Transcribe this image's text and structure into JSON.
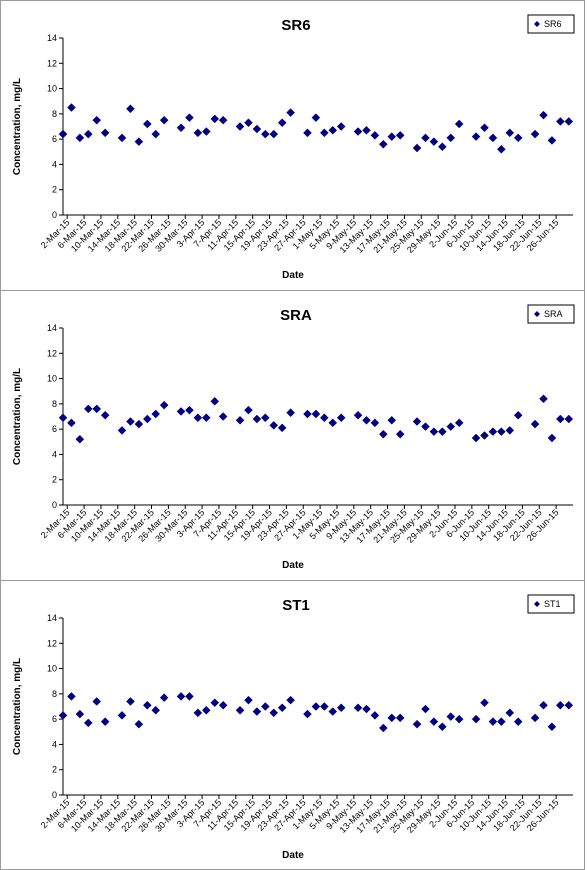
{
  "chart_data": [
    {
      "type": "scatter",
      "title": "SR6",
      "xlabel": "Date",
      "ylabel": "Concentration, mg/L",
      "ylim": [
        0,
        14
      ],
      "yticks": [
        0,
        2,
        4,
        6,
        8,
        10,
        12,
        14
      ],
      "xlim": [
        "2015-03-01",
        "2015-06-30"
      ],
      "xticks": [
        "2-Mar-15",
        "6-Mar-15",
        "10-Mar-15",
        "14-Mar-15",
        "18-Mar-15",
        "22-Mar-15",
        "26-Mar-15",
        "30-Mar-15",
        "3-Apr-15",
        "7-Apr-15",
        "11-Apr-15",
        "15-Apr-15",
        "19-Apr-15",
        "23-Apr-15",
        "27-Apr-15",
        "1-May-15",
        "5-May-15",
        "9-May-15",
        "13-May-15",
        "17-May-15",
        "21-May-15",
        "25-May-15",
        "29-May-15",
        "2-Jun-15",
        "6-Jun-15",
        "10-Jun-15",
        "14-Jun-15",
        "18-Jun-15",
        "22-Jun-15",
        "26-Jun-15"
      ],
      "legend": "top-right",
      "grid": false,
      "color": "#000080",
      "series": [
        {
          "name": "SR6",
          "x": [
            "2015-03-01",
            "2015-03-03",
            "2015-03-05",
            "2015-03-07",
            "2015-03-09",
            "2015-03-11",
            "2015-03-15",
            "2015-03-17",
            "2015-03-19",
            "2015-03-21",
            "2015-03-23",
            "2015-03-25",
            "2015-03-29",
            "2015-03-31",
            "2015-04-02",
            "2015-04-04",
            "2015-04-06",
            "2015-04-08",
            "2015-04-12",
            "2015-04-14",
            "2015-04-16",
            "2015-04-18",
            "2015-04-20",
            "2015-04-22",
            "2015-04-24",
            "2015-04-28",
            "2015-04-30",
            "2015-05-02",
            "2015-05-04",
            "2015-05-06",
            "2015-05-10",
            "2015-05-12",
            "2015-05-14",
            "2015-05-16",
            "2015-05-18",
            "2015-05-20",
            "2015-05-24",
            "2015-05-26",
            "2015-05-28",
            "2015-05-30",
            "2015-06-01",
            "2015-06-03",
            "2015-06-07",
            "2015-06-09",
            "2015-06-11",
            "2015-06-13",
            "2015-06-15",
            "2015-06-17",
            "2015-06-21",
            "2015-06-23",
            "2015-06-25",
            "2015-06-27",
            "2015-06-29"
          ],
          "y": [
            6.4,
            8.5,
            6.1,
            6.4,
            7.5,
            6.5,
            6.1,
            8.4,
            5.8,
            7.2,
            6.4,
            7.5,
            6.9,
            7.7,
            6.5,
            6.6,
            7.6,
            7.5,
            7.0,
            7.3,
            6.8,
            6.4,
            6.4,
            7.3,
            8.1,
            6.5,
            7.7,
            6.5,
            6.7,
            7.0,
            6.6,
            6.7,
            6.3,
            5.6,
            6.2,
            6.3,
            5.3,
            6.1,
            5.8,
            5.4,
            6.1,
            7.2,
            6.2,
            6.9,
            6.1,
            5.2,
            6.5,
            6.1,
            6.4,
            7.9,
            5.9,
            7.4,
            7.4
          ]
        }
      ]
    },
    {
      "type": "scatter",
      "title": "SRA",
      "xlabel": "Date",
      "ylabel": "Concentration, mg/L",
      "ylim": [
        0,
        14
      ],
      "yticks": [
        0,
        2,
        4,
        6,
        8,
        10,
        12,
        14
      ],
      "xlim": [
        "2015-03-01",
        "2015-06-30"
      ],
      "xticks": [
        "2-Mar-15",
        "6-Mar-15",
        "10-Mar-15",
        "14-Mar-15",
        "18-Mar-15",
        "22-Mar-15",
        "26-Mar-15",
        "30-Mar-15",
        "3-Apr-15",
        "7-Apr-15",
        "11-Apr-15",
        "15-Apr-15",
        "19-Apr-15",
        "23-Apr-15",
        "27-Apr-15",
        "1-May-15",
        "5-May-15",
        "9-May-15",
        "13-May-15",
        "17-May-15",
        "21-May-15",
        "25-May-15",
        "29-May-15",
        "2-Jun-15",
        "6-Jun-15",
        "10-Jun-15",
        "14-Jun-15",
        "18-Jun-15",
        "22-Jun-15",
        "26-Jun-15"
      ],
      "legend": "top-right",
      "grid": false,
      "color": "#000080",
      "series": [
        {
          "name": "SRA",
          "x": [
            "2015-03-01",
            "2015-03-03",
            "2015-03-05",
            "2015-03-07",
            "2015-03-09",
            "2015-03-11",
            "2015-03-15",
            "2015-03-17",
            "2015-03-19",
            "2015-03-21",
            "2015-03-23",
            "2015-03-25",
            "2015-03-29",
            "2015-03-31",
            "2015-04-02",
            "2015-04-04",
            "2015-04-06",
            "2015-04-08",
            "2015-04-12",
            "2015-04-14",
            "2015-04-16",
            "2015-04-18",
            "2015-04-20",
            "2015-04-22",
            "2015-04-24",
            "2015-04-28",
            "2015-04-30",
            "2015-05-02",
            "2015-05-04",
            "2015-05-06",
            "2015-05-10",
            "2015-05-12",
            "2015-05-14",
            "2015-05-16",
            "2015-05-18",
            "2015-05-20",
            "2015-05-24",
            "2015-05-26",
            "2015-05-28",
            "2015-05-30",
            "2015-06-01",
            "2015-06-03",
            "2015-06-07",
            "2015-06-09",
            "2015-06-11",
            "2015-06-13",
            "2015-06-15",
            "2015-06-17",
            "2015-06-21",
            "2015-06-23",
            "2015-06-25",
            "2015-06-27",
            "2015-06-29"
          ],
          "y": [
            6.9,
            6.5,
            5.2,
            7.6,
            7.6,
            7.1,
            5.9,
            6.6,
            6.4,
            6.8,
            7.2,
            7.9,
            7.4,
            7.5,
            6.9,
            6.9,
            8.2,
            7.0,
            6.7,
            7.5,
            6.8,
            6.9,
            6.3,
            6.1,
            7.3,
            7.2,
            7.2,
            6.9,
            6.5,
            6.9,
            7.1,
            6.7,
            6.5,
            5.6,
            6.7,
            5.6,
            6.6,
            6.2,
            5.8,
            5.8,
            6.2,
            6.5,
            5.3,
            5.5,
            5.8,
            5.8,
            5.9,
            7.1,
            6.4,
            8.4,
            5.3,
            6.8,
            6.8
          ]
        }
      ]
    },
    {
      "type": "scatter",
      "title": "ST1",
      "xlabel": "Date",
      "ylabel": "Concentration, mg/L",
      "ylim": [
        0,
        14
      ],
      "yticks": [
        0,
        2,
        4,
        6,
        8,
        10,
        12,
        14
      ],
      "xlim": [
        "2015-03-01",
        "2015-06-30"
      ],
      "xticks": [
        "2-Mar-15",
        "6-Mar-15",
        "10-Mar-15",
        "14-Mar-15",
        "18-Mar-15",
        "22-Mar-15",
        "26-Mar-15",
        "30-Mar-15",
        "3-Apr-15",
        "7-Apr-15",
        "11-Apr-15",
        "15-Apr-15",
        "19-Apr-15",
        "23-Apr-15",
        "27-Apr-15",
        "1-May-15",
        "5-May-15",
        "9-May-15",
        "13-May-15",
        "17-May-15",
        "21-May-15",
        "25-May-15",
        "29-May-15",
        "2-Jun-15",
        "6-Jun-15",
        "10-Jun-15",
        "14-Jun-15",
        "18-Jun-15",
        "22-Jun-15",
        "26-Jun-15"
      ],
      "legend": "top-right",
      "grid": false,
      "color": "#000080",
      "series": [
        {
          "name": "ST1",
          "x": [
            "2015-03-01",
            "2015-03-03",
            "2015-03-05",
            "2015-03-07",
            "2015-03-09",
            "2015-03-11",
            "2015-03-15",
            "2015-03-17",
            "2015-03-19",
            "2015-03-21",
            "2015-03-23",
            "2015-03-25",
            "2015-03-29",
            "2015-03-31",
            "2015-04-02",
            "2015-04-04",
            "2015-04-06",
            "2015-04-08",
            "2015-04-12",
            "2015-04-14",
            "2015-04-16",
            "2015-04-18",
            "2015-04-20",
            "2015-04-22",
            "2015-04-24",
            "2015-04-28",
            "2015-04-30",
            "2015-05-02",
            "2015-05-04",
            "2015-05-06",
            "2015-05-10",
            "2015-05-12",
            "2015-05-14",
            "2015-05-16",
            "2015-05-18",
            "2015-05-20",
            "2015-05-24",
            "2015-05-26",
            "2015-05-28",
            "2015-05-30",
            "2015-06-01",
            "2015-06-03",
            "2015-06-07",
            "2015-06-09",
            "2015-06-11",
            "2015-06-13",
            "2015-06-15",
            "2015-06-17",
            "2015-06-21",
            "2015-06-23",
            "2015-06-25",
            "2015-06-27",
            "2015-06-29"
          ],
          "y": [
            6.3,
            7.8,
            6.4,
            5.7,
            7.4,
            5.8,
            6.3,
            7.4,
            5.6,
            7.1,
            6.7,
            7.7,
            7.8,
            7.8,
            6.5,
            6.7,
            7.3,
            7.1,
            6.7,
            7.5,
            6.6,
            7.0,
            6.5,
            6.9,
            7.5,
            6.4,
            7.0,
            7.0,
            6.6,
            6.9,
            6.9,
            6.8,
            6.3,
            5.3,
            6.1,
            6.1,
            5.6,
            6.8,
            5.8,
            5.4,
            6.2,
            6.0,
            6.0,
            7.3,
            5.8,
            5.8,
            6.5,
            5.8,
            6.1,
            7.1,
            5.4,
            7.1,
            7.1
          ]
        }
      ]
    }
  ]
}
